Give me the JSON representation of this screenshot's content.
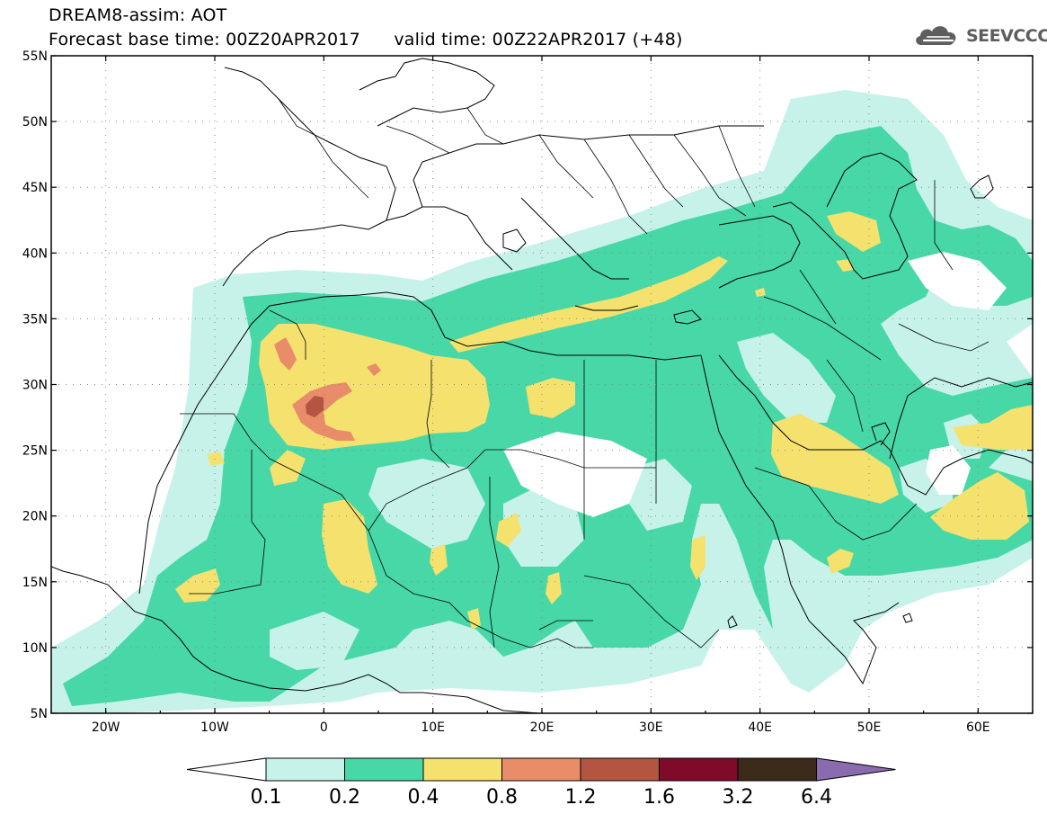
{
  "header": {
    "line1": "DREAM8-assim: AOT",
    "line2": "Forecast base time: 00Z20APR2017      valid time: 00Z22APR2017 (+48)"
  },
  "logo": {
    "text": "SEEVCCC",
    "icon": "cloud-icon",
    "color": "#5e5e5e"
  },
  "map": {
    "lon_range": [
      -25,
      65
    ],
    "lat_range": [
      5,
      55
    ],
    "lat_labels": [
      "55N",
      "50N",
      "45N",
      "40N",
      "35N",
      "30N",
      "25N",
      "20N",
      "15N",
      "10N",
      "5N"
    ],
    "lon_labels": [
      "20W",
      "10W",
      "0",
      "10E",
      "20E",
      "30E",
      "40E",
      "50E",
      "60E"
    ]
  },
  "colorbar": {
    "labels": [
      "0.1",
      "0.2",
      "0.4",
      "0.8",
      "1.2",
      "1.6",
      "3.2",
      "6.4"
    ],
    "colors": [
      "#ffffff",
      "#c6f2ea",
      "#48d7a6",
      "#f5e16e",
      "#e88c6a",
      "#b35540",
      "#7f0a29",
      "#3c2a1a",
      "#8a6bb0"
    ]
  }
}
